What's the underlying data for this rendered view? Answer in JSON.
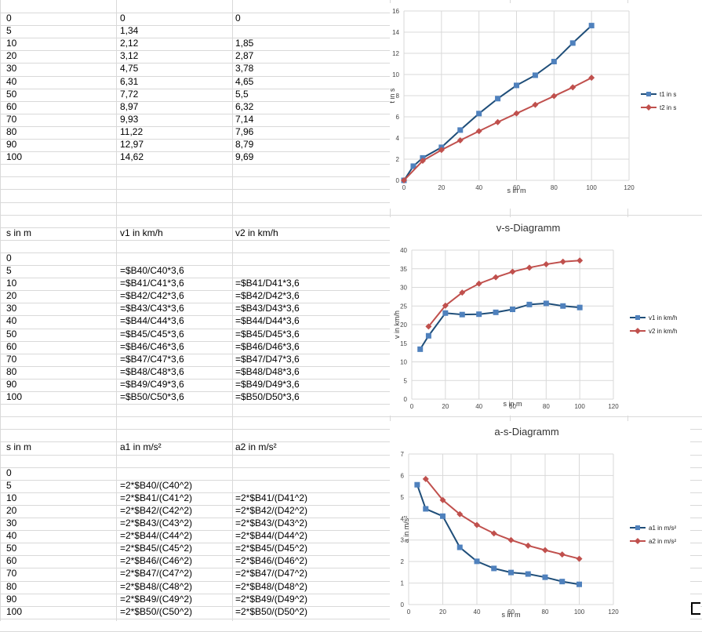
{
  "table1": {
    "rows": [
      [
        "0",
        "0",
        "0"
      ],
      [
        "5",
        "1,34",
        ""
      ],
      [
        "10",
        "2,12",
        "1,85"
      ],
      [
        "20",
        "3,12",
        "2,87"
      ],
      [
        "30",
        "4,75",
        "3,78"
      ],
      [
        "40",
        "6,31",
        "4,65"
      ],
      [
        "50",
        "7,72",
        "5,5"
      ],
      [
        "60",
        "8,97",
        "6,32"
      ],
      [
        "70",
        "9,93",
        "7,14"
      ],
      [
        "80",
        "11,22",
        "7,96"
      ],
      [
        "90",
        "12,97",
        "8,79"
      ],
      [
        "100",
        "14,62",
        "9,69"
      ]
    ]
  },
  "table2": {
    "headers": [
      "s in m",
      "v1 in km/h",
      "v2 in km/h"
    ],
    "rows": [
      [
        "0",
        "",
        ""
      ],
      [
        "5",
        "=$B40/C40*3,6",
        ""
      ],
      [
        "10",
        "=$B41/C41*3,6",
        "=$B41/D41*3,6"
      ],
      [
        "20",
        "=$B42/C42*3,6",
        "=$B42/D42*3,6"
      ],
      [
        "30",
        "=$B43/C43*3,6",
        "=$B43/D43*3,6"
      ],
      [
        "40",
        "=$B44/C44*3,6",
        "=$B44/D44*3,6"
      ],
      [
        "50",
        "=$B45/C45*3,6",
        "=$B45/D45*3,6"
      ],
      [
        "60",
        "=$B46/C46*3,6",
        "=$B46/D46*3,6"
      ],
      [
        "70",
        "=$B47/C47*3,6",
        "=$B47/D47*3,6"
      ],
      [
        "80",
        "=$B48/C48*3,6",
        "=$B48/D48*3,6"
      ],
      [
        "90",
        "=$B49/C49*3,6",
        "=$B49/D49*3,6"
      ],
      [
        "100",
        "=$B50/C50*3,6",
        "=$B50/D50*3,6"
      ]
    ]
  },
  "table3": {
    "headers": [
      "s in m",
      "a1 in m/s²",
      "a2 in m/s²"
    ],
    "rows": [
      [
        "0",
        "",
        ""
      ],
      [
        "5",
        "=2*$B40/(C40^2)",
        ""
      ],
      [
        "10",
        "=2*$B41/(C41^2)",
        "=2*$B41/(D41^2)"
      ],
      [
        "20",
        "=2*$B42/(C42^2)",
        "=2*$B42/(D42^2)"
      ],
      [
        "30",
        "=2*$B43/(C43^2)",
        "=2*$B43/(D43^2)"
      ],
      [
        "40",
        "=2*$B44/(C44^2)",
        "=2*$B44/(D44^2)"
      ],
      [
        "50",
        "=2*$B45/(C45^2)",
        "=2*$B45/(D45^2)"
      ],
      [
        "60",
        "=2*$B46/(C46^2)",
        "=2*$B46/(D46^2)"
      ],
      [
        "70",
        "=2*$B47/(C47^2)",
        "=2*$B47/(D47^2)"
      ],
      [
        "80",
        "=2*$B48/(C48^2)",
        "=2*$B48/(D48^2)"
      ],
      [
        "90",
        "=2*$B49/(C49^2)",
        "=2*$B49/(D49^2)"
      ],
      [
        "100",
        "=2*$B50/(C50^2)",
        "=2*$B50/(D50^2)"
      ]
    ]
  },
  "colors": {
    "series1": "#1f4e79",
    "series1_marker": "#4f81bd",
    "series2": "#c0504d",
    "grid": "#d9d9d9"
  },
  "chart_data": [
    {
      "type": "line",
      "title": "",
      "xlabel": "s in m",
      "ylabel": "t in s",
      "xlim": [
        0,
        120
      ],
      "ylim": [
        0,
        16
      ],
      "xticks": [
        0,
        20,
        40,
        60,
        80,
        100,
        120
      ],
      "yticks": [
        0,
        2,
        4,
        6,
        8,
        10,
        12,
        14,
        16
      ],
      "grid": true,
      "legend": "right",
      "series": [
        {
          "name": "t1 in s",
          "marker": "square",
          "x": [
            0,
            5,
            10,
            20,
            30,
            40,
            50,
            60,
            70,
            80,
            90,
            100
          ],
          "y": [
            0,
            1.34,
            2.12,
            3.12,
            4.75,
            6.31,
            7.72,
            8.97,
            9.93,
            11.22,
            12.97,
            14.62
          ]
        },
        {
          "name": "t2 in s",
          "marker": "diamond",
          "x": [
            0,
            10,
            20,
            30,
            40,
            50,
            60,
            70,
            80,
            90,
            100
          ],
          "y": [
            0,
            1.85,
            2.87,
            3.78,
            4.65,
            5.5,
            6.32,
            7.14,
            7.96,
            8.79,
            9.69
          ]
        }
      ]
    },
    {
      "type": "line",
      "title": "v-s-Diagramm",
      "xlabel": "s in m",
      "ylabel": "v in km/h",
      "xlim": [
        0,
        120
      ],
      "ylim": [
        0,
        40
      ],
      "xticks": [
        0,
        20,
        40,
        60,
        80,
        100,
        120
      ],
      "yticks": [
        0,
        5,
        10,
        15,
        20,
        25,
        30,
        35,
        40
      ],
      "grid": true,
      "legend": "right",
      "series": [
        {
          "name": "v1 in km/h",
          "marker": "square",
          "x": [
            5,
            10,
            20,
            30,
            40,
            50,
            60,
            70,
            80,
            90,
            100
          ],
          "y": [
            13.4,
            17.0,
            23.1,
            22.7,
            22.8,
            23.3,
            24.1,
            25.4,
            25.7,
            25.0,
            24.6
          ]
        },
        {
          "name": "v2 in km/h",
          "marker": "diamond",
          "x": [
            10,
            20,
            30,
            40,
            50,
            60,
            70,
            80,
            90,
            100
          ],
          "y": [
            19.5,
            25.1,
            28.6,
            31.0,
            32.7,
            34.2,
            35.3,
            36.2,
            36.9,
            37.2
          ]
        }
      ]
    },
    {
      "type": "line",
      "title": "a-s-Diagramm",
      "xlabel": "s in m",
      "ylabel": "a in m/s²",
      "xlim": [
        0,
        120
      ],
      "ylim": [
        0,
        7
      ],
      "xticks": [
        0,
        20,
        40,
        60,
        80,
        100,
        120
      ],
      "yticks": [
        0,
        1,
        2,
        3,
        4,
        5,
        6,
        7
      ],
      "grid": true,
      "legend": "right",
      "series": [
        {
          "name": "a1 in m/s²",
          "marker": "square",
          "x": [
            5,
            10,
            20,
            30,
            40,
            50,
            60,
            70,
            80,
            90,
            100
          ],
          "y": [
            5.57,
            4.45,
            4.11,
            2.66,
            2.01,
            1.68,
            1.49,
            1.42,
            1.27,
            1.07,
            0.94
          ]
        },
        {
          "name": "a2 in m/s²",
          "marker": "diamond",
          "x": [
            10,
            20,
            30,
            40,
            50,
            60,
            70,
            80,
            90,
            100
          ],
          "y": [
            5.84,
            4.86,
            4.2,
            3.7,
            3.31,
            3.0,
            2.74,
            2.53,
            2.33,
            2.13
          ]
        }
      ]
    }
  ]
}
